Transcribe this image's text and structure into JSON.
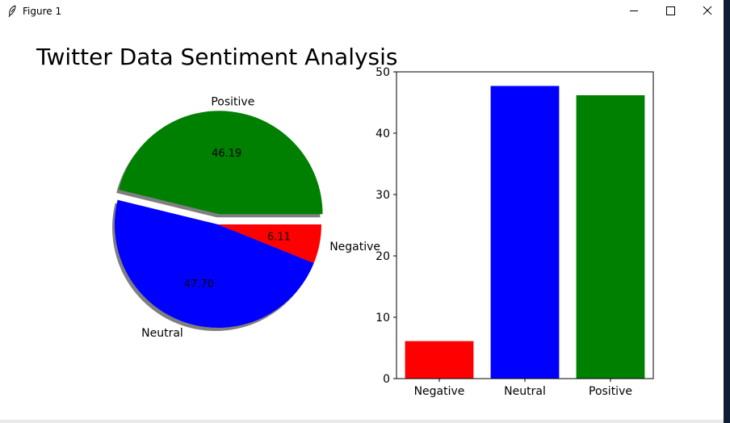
{
  "window": {
    "title": "Figure 1",
    "icon": "feather-icon",
    "controls": [
      "minimize-icon",
      "maximize-icon",
      "close-icon"
    ]
  },
  "figure": {
    "suptitle": "Twitter Data Sentiment Analysis"
  },
  "chart_data": [
    {
      "type": "pie",
      "labels": [
        "Positive",
        "Neutral",
        "Negative"
      ],
      "values": [
        46.19,
        47.7,
        6.11
      ],
      "value_labels": [
        "46.19",
        "47.70",
        "6.11"
      ],
      "colors": [
        "#008000",
        "#0000ff",
        "#ff0000"
      ],
      "explode": [
        0.1,
        0,
        0
      ],
      "shadow": true
    },
    {
      "type": "bar",
      "categories": [
        "Negative",
        "Neutral",
        "Positive"
      ],
      "values": [
        6.11,
        47.7,
        46.19
      ],
      "colors": [
        "#ff0000",
        "#0000ff",
        "#008000"
      ],
      "ylim": [
        0,
        50
      ],
      "yticks": [
        0,
        10,
        20,
        30,
        40,
        50
      ],
      "grid": false
    }
  ]
}
